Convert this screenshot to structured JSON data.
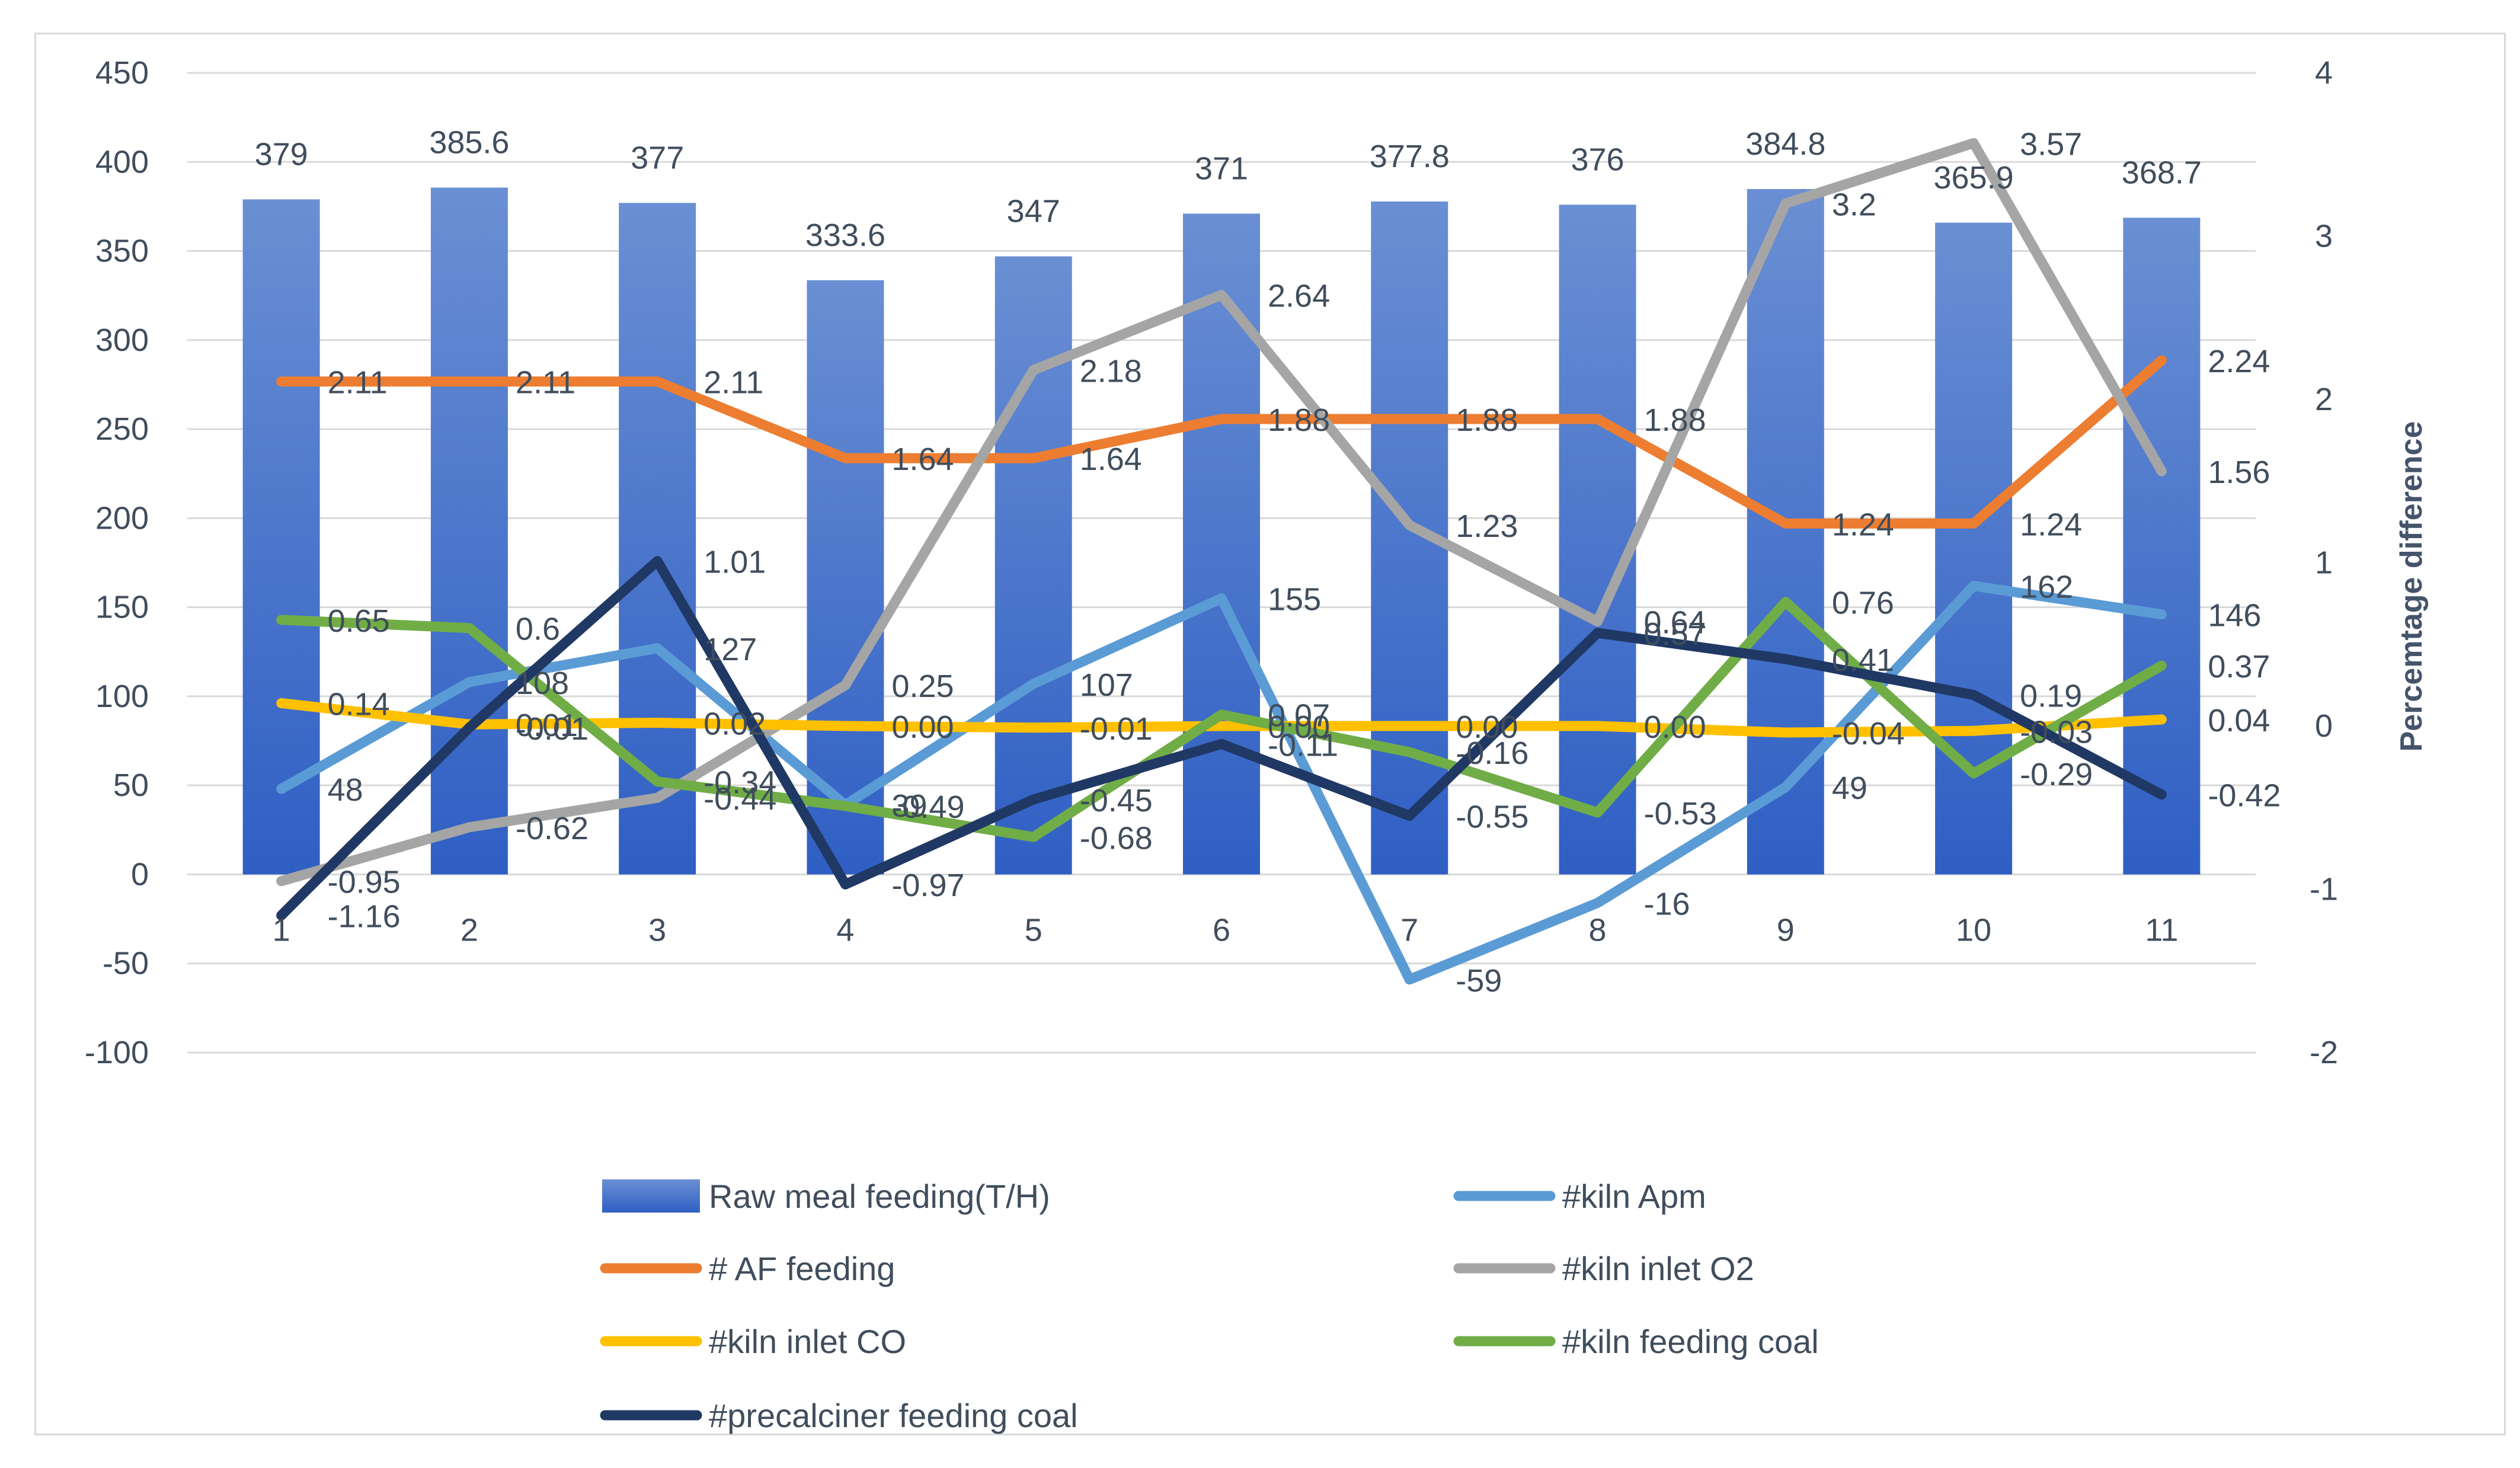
{
  "chart_data": {
    "type": "bar+line",
    "categories": [
      "1",
      "2",
      "3",
      "4",
      "5",
      "6",
      "7",
      "8",
      "9",
      "10",
      "11"
    ],
    "bar_series": {
      "name": "Raw meal feeding(T/H)",
      "axis": "left",
      "color": "#4472c4",
      "values": [
        379,
        385.6,
        377,
        333.6,
        347,
        371,
        377.8,
        376,
        384.8,
        365.9,
        368.7
      ],
      "labels": [
        "379",
        "385.6",
        "377",
        "333.6",
        "347",
        "371",
        "377.8",
        "376",
        "384.8",
        "365.9",
        "368.7"
      ]
    },
    "line_series": [
      {
        "name": "#kiln Apm",
        "axis": "left",
        "color": "#5b9bd5",
        "values": [
          48,
          108,
          127,
          39,
          107,
          155,
          -59,
          -16,
          49,
          162,
          146
        ],
        "labels": [
          "48",
          "108",
          "127",
          "39",
          "107",
          "155",
          "-59",
          "-16",
          "49",
          "162",
          "146"
        ]
      },
      {
        "name": "# AF feeding",
        "axis": "right",
        "color": "#ed7d31",
        "values": [
          2.11,
          2.11,
          2.11,
          1.64,
          1.64,
          1.88,
          1.88,
          1.88,
          1.24,
          1.24,
          2.24
        ],
        "labels": [
          "2.11",
          "2.11",
          "2.11",
          "1.64",
          "1.64",
          "1.88",
          "1.88",
          "1.88",
          "1.24",
          "1.24",
          "2.24"
        ]
      },
      {
        "name": "#kiln inlet O2",
        "axis": "right",
        "color": "#a5a5a5",
        "values": [
          -0.95,
          -0.62,
          -0.44,
          0.25,
          2.18,
          2.64,
          1.23,
          0.64,
          3.2,
          3.57,
          1.56
        ],
        "labels": [
          "-0.95",
          "-0.62",
          "-0.44",
          "0.25",
          "2.18",
          "2.64",
          "1.23",
          "0.64",
          "3.2",
          "3.57",
          "1.56"
        ]
      },
      {
        "name": "#kiln inlet CO",
        "axis": "right",
        "color": "#ffc000",
        "values": [
          0.14,
          0.01,
          0.02,
          0.0,
          -0.01,
          0.0,
          0.0,
          0.0,
          -0.04,
          -0.03,
          0.04
        ],
        "labels": [
          "0.14",
          "0.01",
          "0.02",
          "0.00",
          "-0.01",
          "0.00",
          "0.00",
          "0.00",
          "-0.04",
          "-0.03",
          "0.04"
        ]
      },
      {
        "name": "#kiln feeding coal",
        "axis": "right",
        "color": "#70ad47",
        "values": [
          0.65,
          0.6,
          -0.34,
          -0.49,
          -0.68,
          0.07,
          -0.16,
          -0.53,
          0.76,
          -0.29,
          0.37
        ],
        "labels": [
          "0.65",
          "0.6",
          "-0.34",
          "-0.49",
          "-0.68",
          "0.07",
          "-0.16",
          "-0.53",
          "0.76",
          "-0.29",
          "0.37"
        ]
      },
      {
        "name": "#precalciner feeding coal",
        "axis": "right",
        "color": "#203864",
        "values": [
          -1.16,
          -0.01,
          1.01,
          -0.97,
          -0.45,
          -0.11,
          -0.55,
          0.57,
          0.41,
          0.19,
          -0.42
        ],
        "labels": [
          "-1.16",
          "-0.01",
          "1.01",
          "-0.97",
          "-0.45",
          "-0.11",
          "-0.55",
          "0.57",
          "0.41",
          "0.19",
          "-0.42"
        ]
      }
    ],
    "left_axis": {
      "min": -100,
      "max": 450,
      "step": 50,
      "ticks": [
        "-100",
        "-50",
        "0",
        "50",
        "100",
        "150",
        "200",
        "250",
        "300",
        "350",
        "400",
        "450"
      ]
    },
    "right_axis": {
      "min": -2,
      "max": 4,
      "step": 1,
      "title": "Percemtage difference",
      "ticks": [
        "-2",
        "-1",
        "0",
        "1",
        "2",
        "3",
        "4"
      ]
    },
    "grid": true,
    "legend_position": "bottom",
    "legend": [
      "Raw meal feeding(T/H)",
      "#kiln Apm",
      "# AF feeding",
      "#kiln inlet O2",
      "#kiln inlet CO",
      "#kiln feeding coal",
      "#precalciner feeding coal"
    ]
  }
}
